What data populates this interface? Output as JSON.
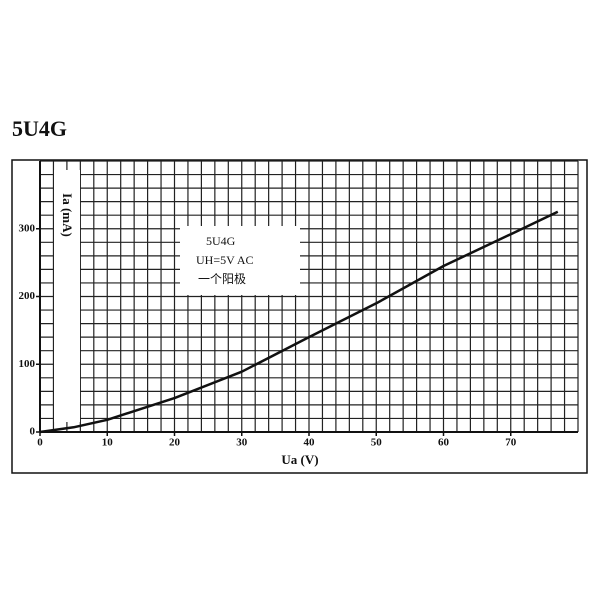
{
  "chart_data": {
    "type": "line",
    "title": "5U4G",
    "x_label": "Ua (V)",
    "y_label": "Ia (mA)",
    "annotations": [
      "5U4G",
      "UH=5V AC",
      "一个阳极"
    ],
    "x": [
      0,
      5,
      10,
      20,
      30,
      40,
      50,
      60,
      70,
      77
    ],
    "values": [
      0,
      7,
      18,
      50,
      89,
      140,
      190,
      245,
      292,
      325
    ],
    "color": "#111111",
    "xlim": [
      0,
      80
    ],
    "ylim": [
      0,
      400
    ],
    "xticks": [
      0,
      10,
      20,
      30,
      40,
      50,
      60,
      70
    ],
    "yticks": [
      0,
      100,
      200,
      300
    ],
    "xgrid": [
      0,
      2,
      4,
      6,
      8,
      10,
      12,
      14,
      16,
      18,
      20,
      22,
      24,
      26,
      28,
      30,
      32,
      34,
      36,
      38,
      40,
      42,
      44,
      46,
      48,
      50,
      52,
      54,
      56,
      58,
      60,
      62,
      64,
      66,
      68,
      70,
      72,
      74,
      76,
      78,
      80
    ],
    "ygrid": [
      0,
      20,
      40,
      60,
      80,
      100,
      120,
      140,
      160,
      180,
      200,
      220,
      240,
      260,
      280,
      300,
      320,
      340,
      360,
      380,
      400
    ],
    "grid": true
  }
}
